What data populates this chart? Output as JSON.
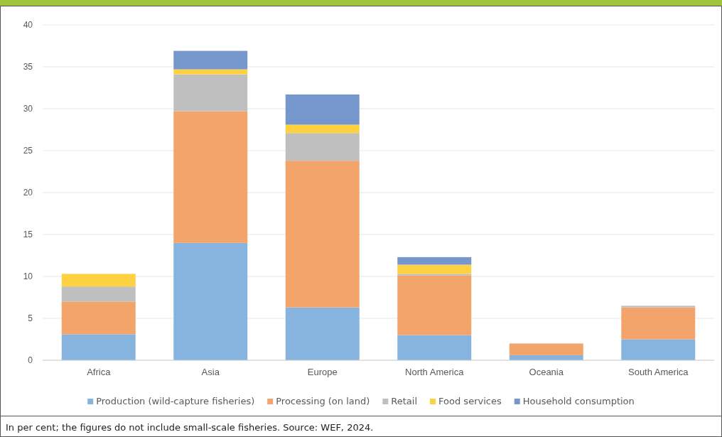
{
  "chart_data": {
    "type": "bar",
    "stacked": true,
    "categories": [
      "Africa",
      "Asia",
      "Europe",
      "North America",
      "Oceania",
      "South America"
    ],
    "series": [
      {
        "name": "Production (wild-capture fisheries)",
        "color": "#86b4de",
        "values": [
          3.1,
          14.0,
          6.3,
          3.0,
          0.6,
          2.5
        ]
      },
      {
        "name": "Processing (on land)",
        "color": "#f2a46b",
        "values": [
          3.9,
          15.7,
          17.5,
          7.1,
          1.4,
          3.8
        ]
      },
      {
        "name": "Retail",
        "color": "#bfbfbf",
        "values": [
          1.8,
          4.4,
          3.3,
          0.2,
          0,
          0.2
        ]
      },
      {
        "name": "Food services",
        "color": "#fdd13f",
        "values": [
          1.5,
          0.6,
          1.0,
          1.1,
          0,
          0
        ]
      },
      {
        "name": "Household consumption",
        "color": "#7597cc",
        "values": [
          0,
          2.2,
          3.6,
          0.9,
          0,
          0
        ]
      }
    ],
    "ylim": [
      0,
      40
    ],
    "yticks": [
      0,
      5,
      10,
      15,
      20,
      25,
      30,
      35,
      40
    ],
    "grid": "y",
    "legend": "bottom",
    "annotations": [
      "In per cent; the figures do not include small-scale fisheries. Source: WEF, 2024."
    ]
  }
}
